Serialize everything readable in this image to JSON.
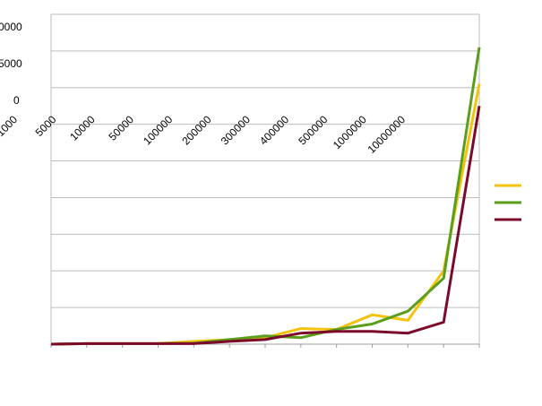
{
  "chart_data": {
    "type": "line",
    "title": "",
    "xlabel": "",
    "ylabel": "",
    "grid": true,
    "legend_position": "right",
    "colors": [
      "#f4c20d",
      "#5a9e1c",
      "#7b0a2a"
    ],
    "visible_y_tick_labels": [
      "0000",
      "5000",
      "0"
    ],
    "x_tick_labels": [
      "1000",
      "5000",
      "10000",
      "50000",
      "100000",
      "200000",
      "300000",
      "400000",
      "500000",
      "1000000",
      "10000000"
    ],
    "series": [
      {
        "name": "",
        "color": "#f4c20d",
        "values": [
          0,
          0.15,
          0.15,
          0.15,
          0.75,
          1.25,
          1.75,
          4.25,
          4.0,
          8.0,
          6.5,
          20.0,
          71.0
        ]
      },
      {
        "name": "",
        "color": "#5a9e1c",
        "values": [
          0,
          0.15,
          0.15,
          0.15,
          0.25,
          1.25,
          2.25,
          1.75,
          4.0,
          5.5,
          9.0,
          18.0,
          81.0
        ]
      },
      {
        "name": "",
        "color": "#7b0a2a",
        "values": [
          0,
          0.15,
          0.15,
          0.15,
          0.15,
          0.75,
          1.25,
          3.0,
          3.5,
          3.5,
          3.0,
          6.0,
          65.0
        ]
      }
    ],
    "n_points": 13,
    "ylim": [
      0,
      90
    ]
  }
}
